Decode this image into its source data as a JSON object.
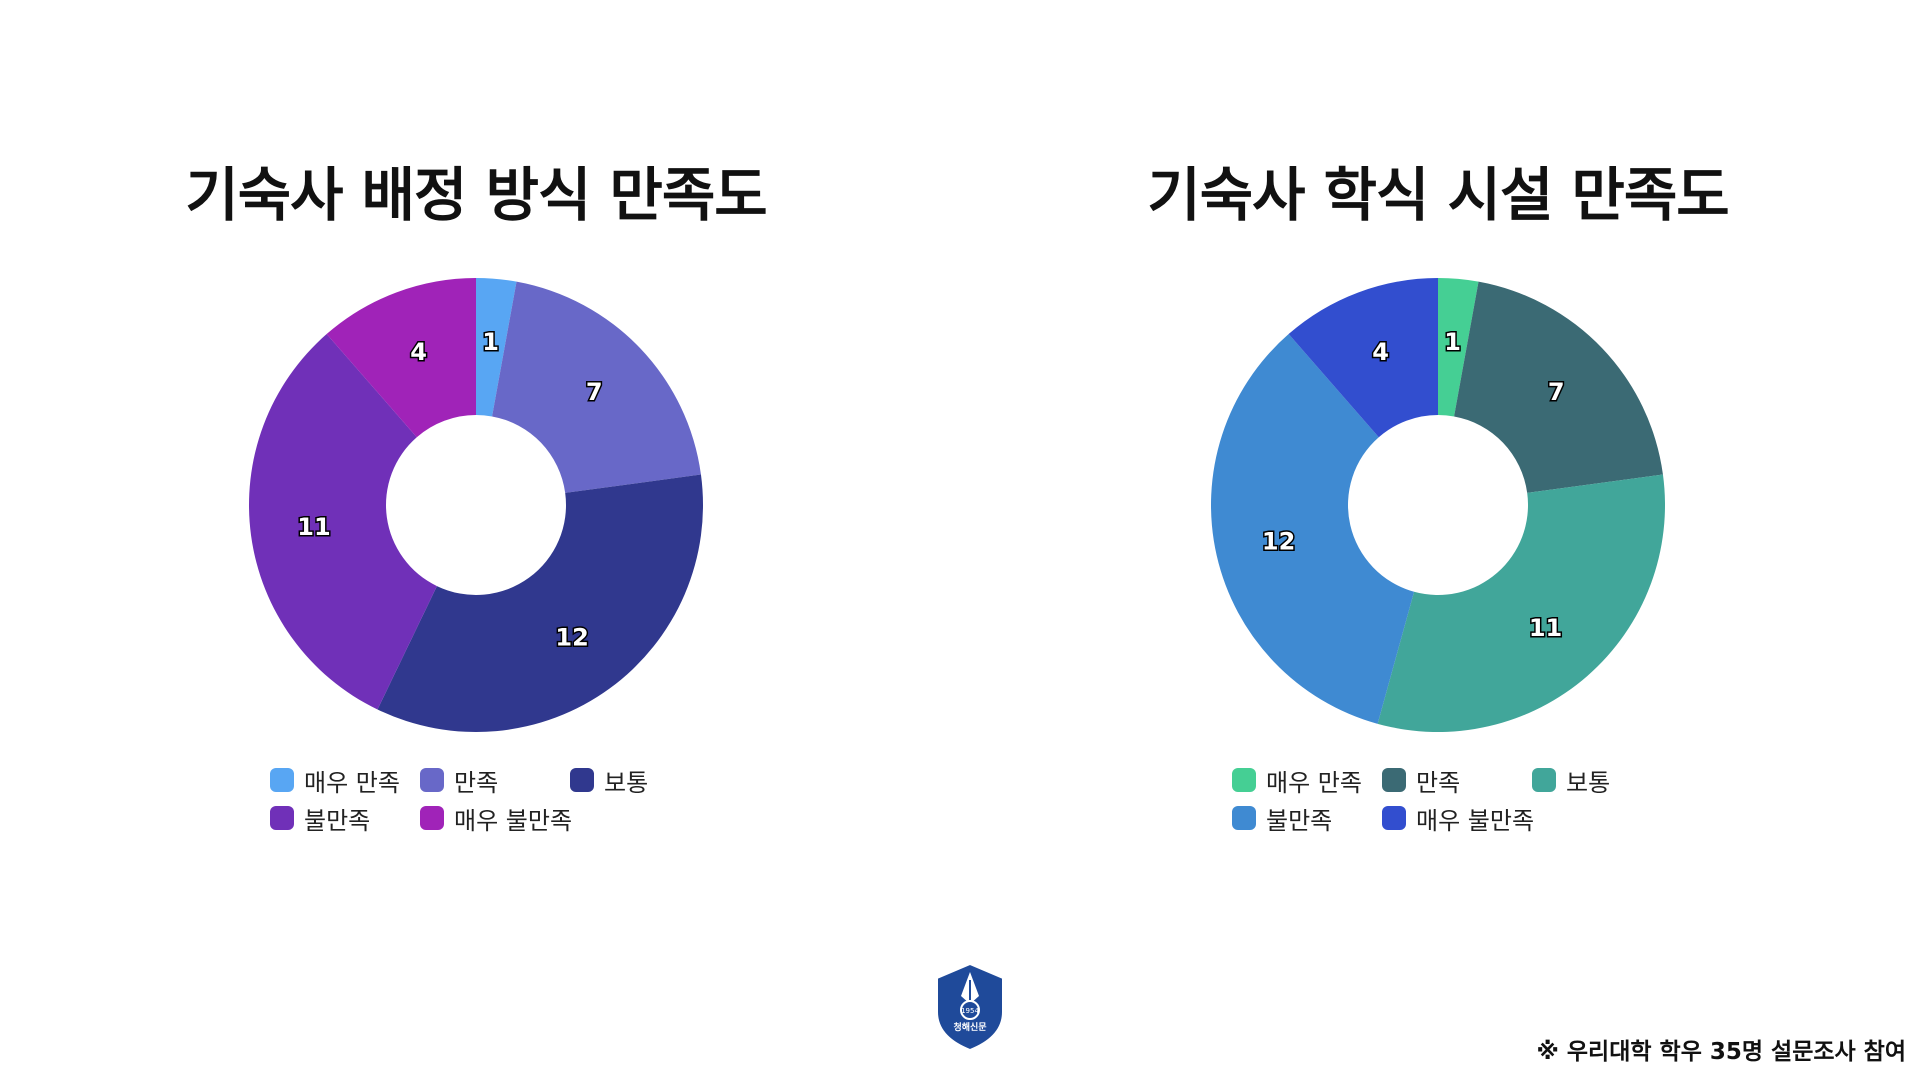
{
  "chart_data": [
    {
      "type": "pie",
      "title": "기숙사 배정 방식 만족도",
      "categories": [
        "매우 만족",
        "만족",
        "보통",
        "불만족",
        "매우 불만족"
      ],
      "values": [
        1,
        7,
        12,
        11,
        4
      ],
      "colors": [
        "#58a6f3",
        "#6868c8",
        "#30388e",
        "#7030b8",
        "#a023b8"
      ],
      "legend_position": "bottom"
    },
    {
      "type": "pie",
      "title": "기숙사 학식 시설 만족도",
      "categories": [
        "매우 만족",
        "만족",
        "보통",
        "불만족",
        "매우 불만족"
      ],
      "values": [
        1,
        7,
        11,
        12,
        4
      ],
      "colors": [
        "#45cf94",
        "#3b6a74",
        "#41a69a",
        "#3f8ad2",
        "#324ecf"
      ],
      "legend_position": "bottom"
    }
  ],
  "emblem": {
    "year_text": "1954",
    "name_text": "청해신문",
    "icon": "university-shield-emblem-icon",
    "color": "#1f4a9a"
  },
  "footnote": "※ 우리대학 학우 35명 설문조사 참여"
}
